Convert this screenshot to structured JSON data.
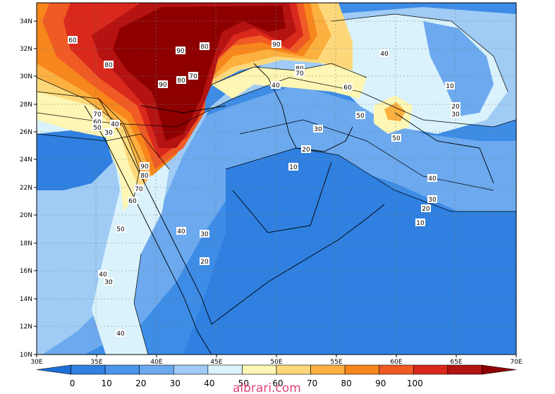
{
  "map": {
    "lat_ticks": [
      "34N",
      "32N",
      "30N",
      "28N",
      "26N",
      "24N",
      "22N",
      "20N",
      "18N",
      "16N",
      "14N",
      "12N",
      "10N"
    ],
    "lon_ticks": [
      "30E",
      "35E",
      "40E",
      "45E",
      "50E",
      "55E",
      "60E",
      "65E",
      "70E"
    ],
    "contour_labels": [
      {
        "id": "c60a",
        "text": "60"
      },
      {
        "id": "c80a",
        "text": "80"
      },
      {
        "id": "c90a",
        "text": "90"
      },
      {
        "id": "c80b",
        "text": "80"
      },
      {
        "id": "c90b",
        "text": "90"
      },
      {
        "id": "c70a",
        "text": "70"
      },
      {
        "id": "c80c",
        "text": "80"
      },
      {
        "id": "c90c",
        "text": "90"
      },
      {
        "id": "c80d",
        "text": "80"
      },
      {
        "id": "c70b",
        "text": "70"
      },
      {
        "id": "c40a",
        "text": "40"
      },
      {
        "id": "c60b",
        "text": "60"
      },
      {
        "id": "c10a",
        "text": "10"
      },
      {
        "id": "c20a",
        "text": "20"
      },
      {
        "id": "c30a",
        "text": "30"
      },
      {
        "id": "c50a",
        "text": "50"
      },
      {
        "id": "c50b",
        "text": "50"
      },
      {
        "id": "c40b",
        "text": "40"
      },
      {
        "id": "c30b",
        "text": "30"
      },
      {
        "id": "c20b",
        "text": "20"
      },
      {
        "id": "c10b",
        "text": "10"
      },
      {
        "id": "c40c",
        "text": "40"
      },
      {
        "id": "c30c",
        "text": "30"
      },
      {
        "id": "c20c",
        "text": "20"
      },
      {
        "id": "c10c",
        "text": "10"
      },
      {
        "id": "c70c",
        "text": "70"
      },
      {
        "id": "c60c",
        "text": "60"
      },
      {
        "id": "c50c",
        "text": "50"
      },
      {
        "id": "c40d",
        "text": "40"
      },
      {
        "id": "c30d",
        "text": "30"
      },
      {
        "id": "c40e",
        "text": "40"
      },
      {
        "id": "c30e",
        "text": "30"
      },
      {
        "id": "c20d",
        "text": "20"
      },
      {
        "id": "c90d",
        "text": "90"
      },
      {
        "id": "c80e",
        "text": "80"
      },
      {
        "id": "c70d",
        "text": "70"
      },
      {
        "id": "c60d",
        "text": "60"
      },
      {
        "id": "c50d",
        "text": "50"
      },
      {
        "id": "c40f",
        "text": "40"
      },
      {
        "id": "c30f",
        "text": "30"
      },
      {
        "id": "c40g",
        "text": "40"
      }
    ]
  },
  "colorbar": {
    "labels": [
      "0",
      "10",
      "20",
      "30",
      "40",
      "50",
      "60",
      "70",
      "80",
      "90",
      "100"
    ],
    "colors": [
      "#1e6fd6",
      "#2f80e0",
      "#4a94ea",
      "#6ca9ee",
      "#9fcbf5",
      "#d9f2fb",
      "#fdf6b4",
      "#fdd87a",
      "#fbb040",
      "#f7861c",
      "#f05a24",
      "#d9281c",
      "#b51212",
      "#8e0000"
    ]
  },
  "watermark": "albrari.com"
}
